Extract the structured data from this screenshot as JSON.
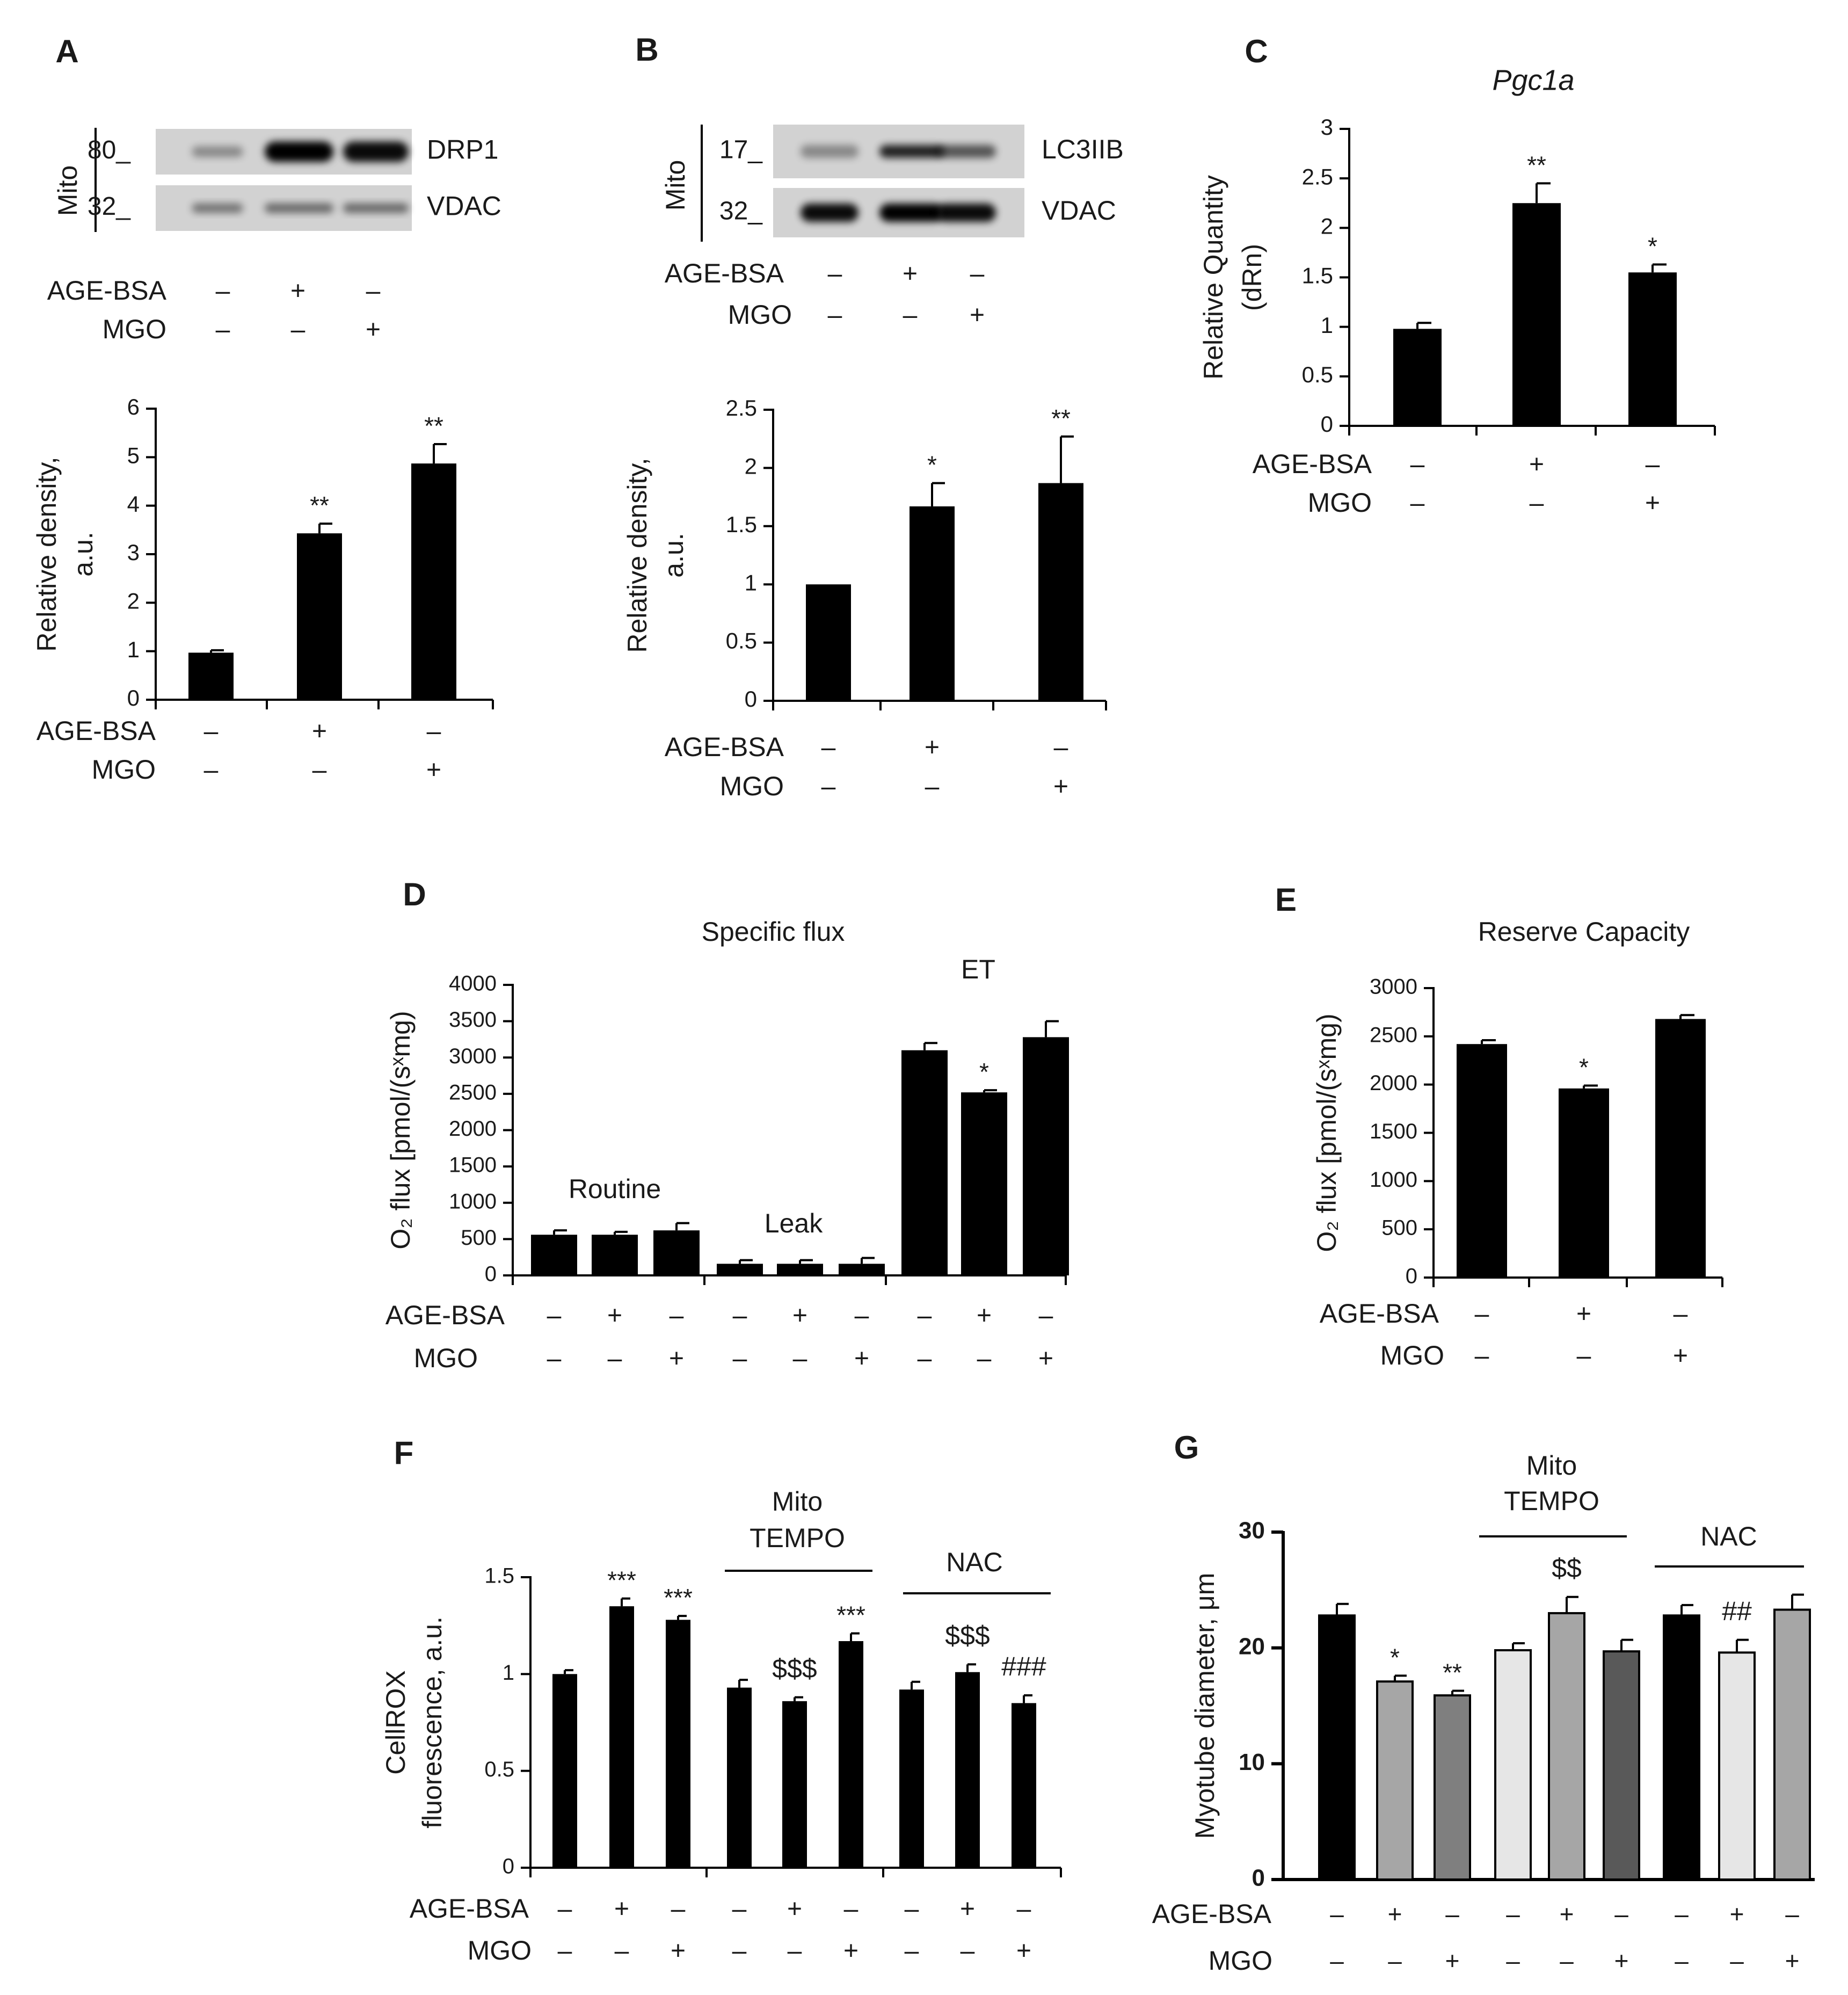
{
  "colors": {
    "black": "#000000",
    "dark_gray": "#595959",
    "mid_gray": "#7f7f7f",
    "light_gray": "#a6a6a6",
    "pale": "#e6e6e6",
    "white": "#ffffff"
  },
  "signs": {
    "plus": "+",
    "minus": "–"
  },
  "treatment_labels": {
    "age": "AGE-BSA",
    "mgo": "MGO"
  },
  "blots": [
    {
      "panel": "A",
      "group_label": "Mito",
      "lanes_age": [
        "-",
        "+",
        "-"
      ],
      "lanes_mgo": [
        "-",
        "-",
        "+"
      ],
      "rows": [
        {
          "marker": "80_",
          "protein": "DRP1",
          "intensity": [
            0.35,
            1.0,
            0.95
          ]
        },
        {
          "marker": "32_",
          "protein": "VDAC",
          "intensity": [
            0.45,
            0.5,
            0.5
          ]
        }
      ]
    },
    {
      "panel": "B",
      "group_label": "Mito",
      "lanes_age": [
        "-",
        "+",
        "-"
      ],
      "lanes_mgo": [
        "-",
        "-",
        "+"
      ],
      "rows": [
        {
          "marker": "17_",
          "protein": "LC3IIB",
          "intensity": [
            0.35,
            0.85,
            0.6
          ]
        },
        {
          "marker": "32_",
          "protein": "VDAC",
          "intensity": [
            0.95,
            1.0,
            0.95
          ]
        }
      ]
    }
  ],
  "chart_data": [
    {
      "panel": "A",
      "type": "bar",
      "title": "",
      "ylabel": [
        "Relative  density,",
        "a.u."
      ],
      "ylim": [
        0,
        6
      ],
      "yticks": [
        0,
        1,
        2,
        3,
        4,
        5,
        6
      ],
      "values": [
        0.97,
        3.43,
        4.87
      ],
      "errors": [
        0.05,
        0.2,
        0.4
      ],
      "sig": [
        "",
        "**",
        "**"
      ],
      "age": [
        "-",
        "+",
        "-"
      ],
      "mgo": [
        "-",
        "-",
        "+"
      ]
    },
    {
      "panel": "B",
      "type": "bar",
      "title": "",
      "ylabel": [
        "Relative  density,",
        "a.u."
      ],
      "ylim": [
        0,
        2.5
      ],
      "yticks": [
        0,
        0.5,
        1,
        1.5,
        2,
        2.5
      ],
      "values": [
        1.0,
        1.67,
        1.87
      ],
      "errors": [
        0,
        0.2,
        0.4
      ],
      "sig": [
        "",
        "*",
        "**"
      ],
      "age": [
        "-",
        "+",
        "-"
      ],
      "mgo": [
        "-",
        "-",
        "+"
      ]
    },
    {
      "panel": "C",
      "type": "bar",
      "title": "Pgc1a",
      "ylabel": [
        "Relative  Quantity",
        "(dRn)"
      ],
      "ylim": [
        0,
        3
      ],
      "yticks": [
        0,
        0.5,
        1,
        1.5,
        2,
        2.5,
        3
      ],
      "values": [
        0.98,
        2.25,
        1.55
      ],
      "errors": [
        0.06,
        0.2,
        0.08
      ],
      "sig": [
        "",
        "**",
        "*"
      ],
      "age": [
        "-",
        "+",
        "-"
      ],
      "mgo": [
        "-",
        "-",
        "+"
      ]
    },
    {
      "panel": "D",
      "type": "bar",
      "title": "Specific  flux",
      "ylabel": [
        "O₂ flux  [pmol/(sˣmg)"
      ],
      "ylim": [
        0,
        4000
      ],
      "yticks": [
        0,
        500,
        1000,
        1500,
        2000,
        2500,
        3000,
        3500,
        4000
      ],
      "groups": [
        "Routine",
        "Leak",
        "ET"
      ],
      "values": [
        560,
        560,
        620,
        160,
        160,
        160,
        3100,
        2520,
        3280
      ],
      "errors": [
        60,
        40,
        100,
        50,
        50,
        80,
        100,
        30,
        220
      ],
      "sig": [
        "",
        "",
        "",
        "",
        "",
        "",
        "",
        "*",
        ""
      ],
      "age": [
        "-",
        "+",
        "-",
        "-",
        "+",
        "-",
        "-",
        "+",
        "-"
      ],
      "mgo": [
        "-",
        "-",
        "+",
        "-",
        "-",
        "+",
        "-",
        "-",
        "+"
      ]
    },
    {
      "panel": "E",
      "type": "bar",
      "title": "Reserve  Capacity",
      "ylabel": [
        "O₂ flux  [pmol/(sˣmg)"
      ],
      "ylim": [
        0,
        3000
      ],
      "yticks": [
        0,
        500,
        1000,
        1500,
        2000,
        2500,
        3000
      ],
      "values": [
        2420,
        1960,
        2680
      ],
      "errors": [
        40,
        30,
        40
      ],
      "sig": [
        "",
        "*",
        ""
      ],
      "age": [
        "-",
        "+",
        "-"
      ],
      "mgo": [
        "-",
        "-",
        "+"
      ]
    },
    {
      "panel": "F",
      "type": "bar",
      "title": "",
      "ylabel": [
        "CellROX",
        "fluorescence,  a.u."
      ],
      "ylim": [
        0,
        1.5
      ],
      "yticks": [
        0,
        0.5,
        1,
        1.5
      ],
      "bracket_groups": [
        [
          "Mito",
          "TEMPO"
        ],
        [
          "NAC"
        ]
      ],
      "values": [
        1.0,
        1.35,
        1.28,
        0.93,
        0.86,
        1.17,
        0.92,
        1.01,
        0.85
      ],
      "errors": [
        0.02,
        0.04,
        0.02,
        0.04,
        0.02,
        0.04,
        0.04,
        0.04,
        0.04
      ],
      "sig": [
        "",
        "***",
        "***",
        "",
        "$$$",
        "***",
        "",
        "$$$",
        "###"
      ],
      "age": [
        "-",
        "+",
        "-",
        "-",
        "+",
        "-",
        "-",
        "+",
        "-"
      ],
      "mgo": [
        "-",
        "-",
        "+",
        "-",
        "-",
        "+",
        "-",
        "-",
        "+"
      ]
    },
    {
      "panel": "G",
      "type": "bar",
      "title": "",
      "ylabel": [
        "Myotube diameter,  μm"
      ],
      "ylim": [
        0,
        30
      ],
      "yticks": [
        0,
        10,
        20,
        30
      ],
      "bracket_groups": [
        [
          "Mito",
          "TEMPO"
        ],
        [
          "NAC"
        ]
      ],
      "values": [
        22.8,
        17.1,
        15.9,
        19.8,
        23.0,
        19.7,
        22.8,
        19.6,
        23.3
      ],
      "errors": [
        1.0,
        0.5,
        0.4,
        0.6,
        1.4,
        1.0,
        0.9,
        1.1,
        1.3
      ],
      "sig": [
        "",
        "*",
        "**",
        "",
        "$$",
        "",
        "",
        "##",
        ""
      ],
      "bar_colors": [
        "#000000",
        "#a6a6a6",
        "#7f7f7f",
        "#e6e6e6",
        "#a6a6a6",
        "#595959",
        "#000000",
        "#e6e6e6",
        "#a6a6a6"
      ],
      "age": [
        "-",
        "+",
        "-",
        "-",
        "+",
        "-",
        "-",
        "+",
        "-"
      ],
      "mgo": [
        "-",
        "-",
        "+",
        "-",
        "-",
        "+",
        "-",
        "-",
        "+"
      ]
    }
  ]
}
